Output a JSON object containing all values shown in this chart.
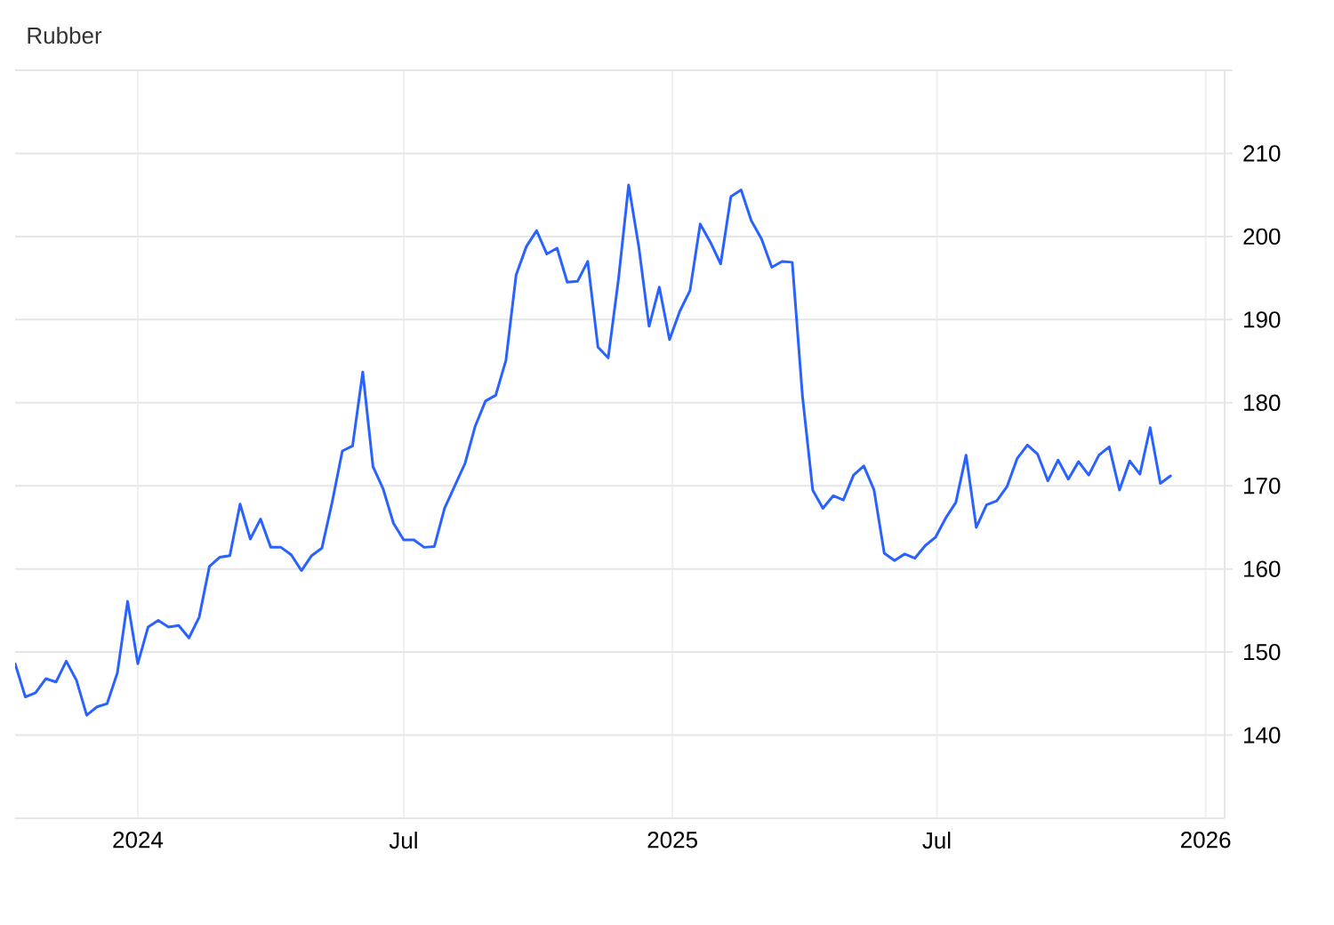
{
  "chart_data": {
    "type": "line",
    "title": "Rubber",
    "x": [
      "2023-10-09",
      "2023-10-16",
      "2023-10-23",
      "2023-10-30",
      "2023-11-06",
      "2023-11-13",
      "2023-11-20",
      "2023-11-27",
      "2023-12-04",
      "2023-12-11",
      "2023-12-18",
      "2023-12-25",
      "2024-01-01",
      "2024-01-08",
      "2024-01-15",
      "2024-01-22",
      "2024-01-29",
      "2024-02-05",
      "2024-02-12",
      "2024-02-19",
      "2024-02-26",
      "2024-03-04",
      "2024-03-11",
      "2024-03-18",
      "2024-03-25",
      "2024-04-01",
      "2024-04-08",
      "2024-04-15",
      "2024-04-22",
      "2024-04-29",
      "2024-05-06",
      "2024-05-13",
      "2024-05-20",
      "2024-05-27",
      "2024-06-03",
      "2024-06-10",
      "2024-06-17",
      "2024-06-24",
      "2024-07-01",
      "2024-07-08",
      "2024-07-15",
      "2024-07-22",
      "2024-07-29",
      "2024-08-05",
      "2024-08-12",
      "2024-08-19",
      "2024-08-26",
      "2024-09-02",
      "2024-09-09",
      "2024-09-16",
      "2024-09-23",
      "2024-09-30",
      "2024-10-07",
      "2024-10-14",
      "2024-10-21",
      "2024-10-28",
      "2024-11-04",
      "2024-11-11",
      "2024-11-18",
      "2024-11-25",
      "2024-12-02",
      "2024-12-09",
      "2024-12-16",
      "2024-12-23",
      "2024-12-30",
      "2025-01-06",
      "2025-01-13",
      "2025-01-20",
      "2025-01-27",
      "2025-02-03",
      "2025-02-10",
      "2025-02-17",
      "2025-02-24",
      "2025-03-03",
      "2025-03-10",
      "2025-03-17",
      "2025-03-24",
      "2025-03-31",
      "2025-04-07",
      "2025-04-14",
      "2025-04-21",
      "2025-04-28",
      "2025-05-05",
      "2025-05-12",
      "2025-05-19",
      "2025-05-26",
      "2025-06-02",
      "2025-06-09",
      "2025-06-16",
      "2025-06-23",
      "2025-06-30",
      "2025-07-07",
      "2025-07-14",
      "2025-07-21",
      "2025-07-28",
      "2025-08-04",
      "2025-08-11",
      "2025-08-18",
      "2025-08-25",
      "2025-09-01",
      "2025-09-08",
      "2025-09-15",
      "2025-09-22",
      "2025-09-29",
      "2025-10-06",
      "2025-10-13",
      "2025-10-20",
      "2025-10-27",
      "2025-11-03",
      "2025-11-10",
      "2025-11-17",
      "2025-11-24",
      "2025-12-01",
      "2025-12-08"
    ],
    "values": [
      148.6,
      144.6,
      145.1,
      146.8,
      146.4,
      148.9,
      146.6,
      142.4,
      143.4,
      143.8,
      147.5,
      156.1,
      148.6,
      153.0,
      153.8,
      153.0,
      153.2,
      151.7,
      154.2,
      160.3,
      161.4,
      161.6,
      167.8,
      163.6,
      166.0,
      162.6,
      162.6,
      161.7,
      159.8,
      161.6,
      162.5,
      168.0,
      174.2,
      174.8,
      183.7,
      172.3,
      169.6,
      165.5,
      163.5,
      163.5,
      162.6,
      162.7,
      167.3,
      170.0,
      172.7,
      177.2,
      180.2,
      180.9,
      185.1,
      195.4,
      198.8,
      200.7,
      197.9,
      198.6,
      194.5,
      194.6,
      197.0,
      186.7,
      185.4,
      194.8,
      206.2,
      198.7,
      189.2,
      193.9,
      187.6,
      191.0,
      193.5,
      201.5,
      199.3,
      196.7,
      204.8,
      205.6,
      201.9,
      199.7,
      196.3,
      197.0,
      196.9,
      180.8,
      169.5,
      167.3,
      168.8,
      168.3,
      171.3,
      172.4,
      169.5,
      161.9,
      161.0,
      161.8,
      161.3,
      162.8,
      163.8,
      166.1,
      168.0,
      173.7,
      165.0,
      167.7,
      168.2,
      169.9,
      173.3,
      174.9,
      173.8,
      170.6,
      173.1,
      170.8,
      172.9,
      171.3,
      173.7,
      174.7,
      169.5,
      173.0,
      171.4,
      177.0,
      170.3,
      171.2
    ],
    "color": "#2962ff",
    "xlim": [
      "2023-10-09",
      "2026-01-14"
    ],
    "xticks": [
      {
        "value": "2024-01-01",
        "label": "2024"
      },
      {
        "value": "2024-07-01",
        "label": "Jul"
      },
      {
        "value": "2025-01-01",
        "label": "2025"
      },
      {
        "value": "2025-07-01",
        "label": "Jul"
      },
      {
        "value": "2026-01-01",
        "label": "2026"
      }
    ],
    "ylim": [
      130,
      220
    ],
    "yticks": [
      140,
      150,
      160,
      170,
      180,
      190,
      200,
      210,
      {
        "value": 220,
        "label": null
      }
    ],
    "grid": true
  }
}
